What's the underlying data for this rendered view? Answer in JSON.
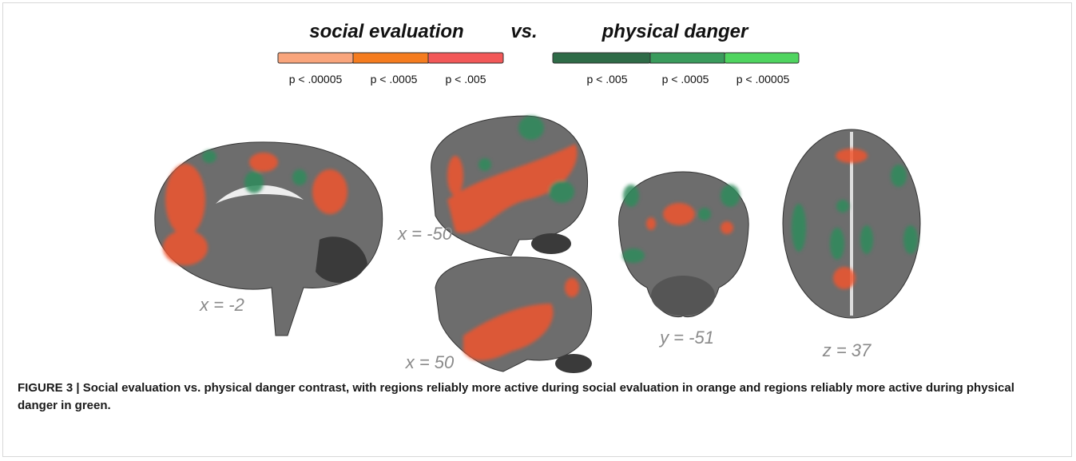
{
  "legend": {
    "left_title": "social evaluation",
    "vs": "vs.",
    "right_title": "physical danger",
    "left_labels": [
      "p < .00005",
      "p < .0005",
      "p < .005"
    ],
    "right_labels": [
      "p < .005",
      "p < .0005",
      "p < .00005"
    ]
  },
  "slices": [
    {
      "label": "x = -2"
    },
    {
      "label": "x = -50"
    },
    {
      "label": "x = 50"
    },
    {
      "label": "y = -51"
    },
    {
      "label": "z = 37"
    }
  ],
  "caption": "FIGURE 3 | Social evaluation vs. physical danger contrast, with regions reliably more active during social evaluation in orange and regions reliably more active during physical danger in green."
}
